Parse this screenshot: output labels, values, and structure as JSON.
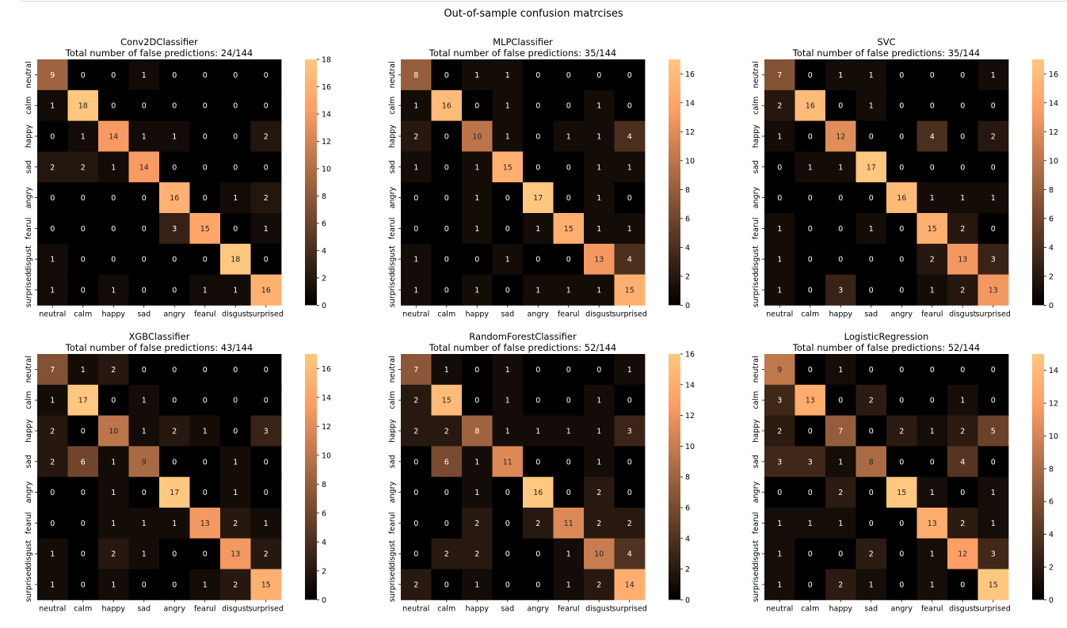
{
  "figure_title": "Out-of-sample confusion matrcises",
  "chart_data": [
    {
      "type": "heatmap",
      "title": "Conv2DClassifier",
      "subtitle": "Total number of false predictions: 24/144",
      "labels": [
        "neutral",
        "calm",
        "happy",
        "sad",
        "angry",
        "fearul",
        "disgust",
        "surprised"
      ],
      "colormap": "copper",
      "vmin": 0,
      "vmax": 18,
      "colorbar_ticks": [
        0,
        2,
        4,
        6,
        8,
        10,
        12,
        14,
        16,
        18
      ],
      "matrix": [
        [
          9,
          0,
          0,
          1,
          0,
          0,
          0,
          0
        ],
        [
          1,
          18,
          0,
          0,
          0,
          0,
          0,
          0
        ],
        [
          0,
          1,
          14,
          1,
          1,
          0,
          0,
          2
        ],
        [
          2,
          2,
          1,
          14,
          0,
          0,
          0,
          0
        ],
        [
          0,
          0,
          0,
          0,
          16,
          0,
          1,
          2
        ],
        [
          0,
          0,
          0,
          0,
          3,
          15,
          0,
          1
        ],
        [
          1,
          0,
          0,
          0,
          0,
          0,
          18,
          0
        ],
        [
          1,
          0,
          1,
          0,
          0,
          1,
          1,
          16
        ]
      ]
    },
    {
      "type": "heatmap",
      "title": "MLPClassifier",
      "subtitle": "Total number of false predictions: 35/144",
      "labels": [
        "neutral",
        "calm",
        "happy",
        "sad",
        "angry",
        "fearul",
        "disgust",
        "surprised"
      ],
      "colormap": "copper",
      "vmin": 0,
      "vmax": 17,
      "colorbar_ticks": [
        0,
        2,
        4,
        6,
        8,
        10,
        12,
        14,
        16
      ],
      "matrix": [
        [
          8,
          0,
          1,
          1,
          0,
          0,
          0,
          0
        ],
        [
          1,
          16,
          0,
          1,
          0,
          0,
          1,
          0
        ],
        [
          2,
          0,
          10,
          1,
          0,
          1,
          1,
          4
        ],
        [
          1,
          0,
          1,
          15,
          0,
          0,
          1,
          1
        ],
        [
          0,
          0,
          1,
          0,
          17,
          0,
          1,
          0
        ],
        [
          0,
          0,
          1,
          0,
          1,
          15,
          1,
          1
        ],
        [
          1,
          0,
          0,
          1,
          0,
          0,
          13,
          4
        ],
        [
          1,
          0,
          1,
          0,
          1,
          1,
          1,
          15
        ]
      ]
    },
    {
      "type": "heatmap",
      "title": "SVC",
      "subtitle": "Total number of false predictions: 35/144",
      "labels": [
        "neutral",
        "calm",
        "happy",
        "sad",
        "angry",
        "fearul",
        "disgust",
        "surprised"
      ],
      "colormap": "copper",
      "vmin": 0,
      "vmax": 17,
      "colorbar_ticks": [
        0,
        2,
        4,
        6,
        8,
        10,
        12,
        14,
        16
      ],
      "matrix": [
        [
          7,
          0,
          1,
          1,
          0,
          0,
          0,
          1
        ],
        [
          2,
          16,
          0,
          1,
          0,
          0,
          0,
          0
        ],
        [
          1,
          0,
          12,
          0,
          0,
          4,
          0,
          2
        ],
        [
          0,
          1,
          1,
          17,
          0,
          0,
          0,
          0
        ],
        [
          0,
          0,
          0,
          0,
          16,
          1,
          1,
          1
        ],
        [
          1,
          0,
          0,
          1,
          0,
          15,
          2,
          0
        ],
        [
          1,
          0,
          0,
          0,
          0,
          2,
          13,
          3
        ],
        [
          1,
          0,
          3,
          0,
          0,
          1,
          2,
          13
        ]
      ]
    },
    {
      "type": "heatmap",
      "title": "XGBClassifier",
      "subtitle": "Total number of false predictions: 43/144",
      "labels": [
        "neutral",
        "calm",
        "happy",
        "sad",
        "angry",
        "fearul",
        "disgust",
        "surprised"
      ],
      "colormap": "copper",
      "vmin": 0,
      "vmax": 17,
      "colorbar_ticks": [
        0,
        2,
        4,
        6,
        8,
        10,
        12,
        14,
        16
      ],
      "matrix": [
        [
          7,
          1,
          2,
          0,
          0,
          0,
          0,
          0
        ],
        [
          1,
          17,
          0,
          1,
          0,
          0,
          0,
          0
        ],
        [
          2,
          0,
          10,
          1,
          2,
          1,
          0,
          3
        ],
        [
          2,
          6,
          1,
          9,
          0,
          0,
          1,
          0
        ],
        [
          0,
          0,
          1,
          0,
          17,
          0,
          1,
          0
        ],
        [
          0,
          0,
          1,
          1,
          1,
          13,
          2,
          1
        ],
        [
          1,
          0,
          2,
          1,
          0,
          0,
          13,
          2
        ],
        [
          1,
          0,
          1,
          0,
          0,
          1,
          2,
          15
        ]
      ]
    },
    {
      "type": "heatmap",
      "title": "RandomForestClassifier",
      "subtitle": "Total number of false predictions: 52/144",
      "labels": [
        "neutral",
        "calm",
        "happy",
        "sad",
        "angry",
        "fearul",
        "disgust",
        "surprised"
      ],
      "colormap": "copper",
      "vmin": 0,
      "vmax": 16,
      "colorbar_ticks": [
        0,
        2,
        4,
        6,
        8,
        10,
        12,
        14,
        16
      ],
      "matrix": [
        [
          7,
          1,
          0,
          1,
          0,
          0,
          0,
          1
        ],
        [
          2,
          15,
          0,
          1,
          0,
          0,
          1,
          0
        ],
        [
          2,
          2,
          8,
          1,
          1,
          1,
          1,
          3
        ],
        [
          0,
          6,
          1,
          11,
          0,
          0,
          1,
          0
        ],
        [
          0,
          0,
          1,
          0,
          16,
          0,
          2,
          0
        ],
        [
          0,
          0,
          2,
          0,
          2,
          11,
          2,
          2
        ],
        [
          0,
          2,
          2,
          0,
          0,
          1,
          10,
          4
        ],
        [
          2,
          0,
          1,
          0,
          0,
          1,
          2,
          14
        ]
      ]
    },
    {
      "type": "heatmap",
      "title": "LogisticRegression",
      "subtitle": "Total number of false predictions: 52/144",
      "labels": [
        "neutral",
        "calm",
        "happy",
        "sad",
        "angry",
        "fearul",
        "disgust",
        "surprised"
      ],
      "colormap": "copper",
      "vmin": 0,
      "vmax": 15,
      "colorbar_ticks": [
        0,
        2,
        4,
        6,
        8,
        10,
        12,
        14
      ],
      "matrix": [
        [
          9,
          0,
          1,
          0,
          0,
          0,
          0,
          0
        ],
        [
          3,
          13,
          0,
          2,
          0,
          0,
          1,
          0
        ],
        [
          2,
          0,
          7,
          0,
          2,
          1,
          2,
          5
        ],
        [
          3,
          3,
          1,
          8,
          0,
          0,
          4,
          0
        ],
        [
          0,
          0,
          2,
          0,
          15,
          1,
          0,
          1
        ],
        [
          1,
          1,
          1,
          0,
          0,
          13,
          2,
          1
        ],
        [
          1,
          0,
          0,
          2,
          0,
          1,
          12,
          3
        ],
        [
          1,
          0,
          2,
          1,
          0,
          1,
          0,
          15
        ]
      ]
    }
  ]
}
